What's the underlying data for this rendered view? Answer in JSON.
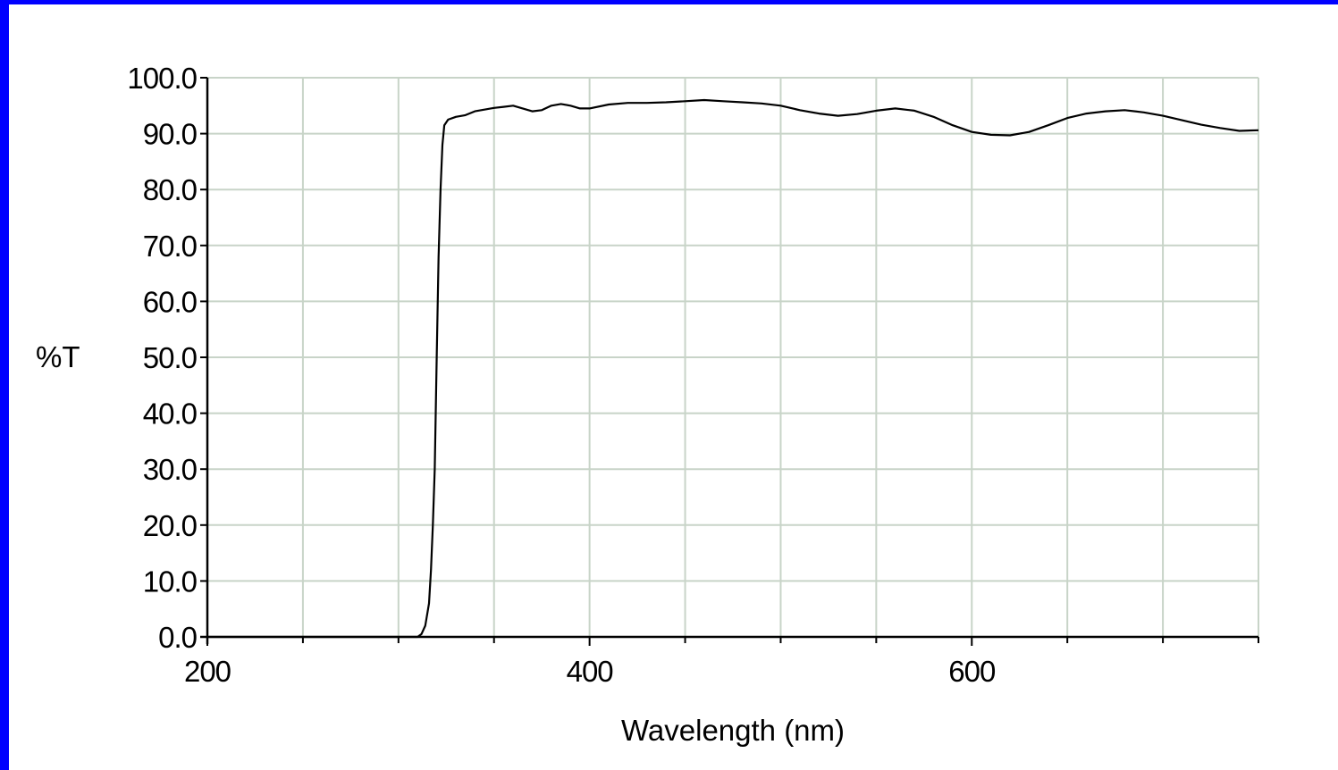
{
  "chart_data": {
    "type": "line",
    "title": "",
    "xlabel": "Wavelength (nm)",
    "ylabel": "%T",
    "xlim": [
      200,
      750
    ],
    "ylim": [
      0,
      100
    ],
    "x_tick_labels": [
      "200",
      "400",
      "600"
    ],
    "x_tick_values": [
      200,
      400,
      600
    ],
    "x_minor_ticks": [
      250,
      300,
      350,
      450,
      500,
      550,
      650,
      700,
      750
    ],
    "y_tick_labels": [
      "0.0",
      "10.0",
      "20.0",
      "30.0",
      "40.0",
      "50.0",
      "60.0",
      "70.0",
      "80.0",
      "90.0",
      "100.0"
    ],
    "y_tick_values": [
      0,
      10,
      20,
      30,
      40,
      50,
      60,
      70,
      80,
      90,
      100
    ],
    "grid": true,
    "legend": "none",
    "colors": {
      "line": "#000000",
      "grid": "#c8d4c8",
      "frame": "#0000ff"
    },
    "series": [
      {
        "name": "",
        "x": [
          200,
          250,
          300,
          310,
          312,
          314,
          316,
          317,
          318,
          319,
          320,
          321,
          322,
          323,
          324,
          326,
          330,
          335,
          340,
          345,
          350,
          355,
          360,
          365,
          370,
          375,
          380,
          385,
          390,
          395,
          400,
          410,
          420,
          430,
          440,
          450,
          460,
          470,
          480,
          490,
          500,
          510,
          520,
          530,
          540,
          550,
          560,
          570,
          580,
          590,
          600,
          610,
          620,
          630,
          640,
          650,
          660,
          670,
          680,
          690,
          700,
          710,
          720,
          730,
          740,
          750
        ],
        "y": [
          0,
          0,
          0,
          0,
          0.5,
          2,
          6,
          12,
          20,
          30,
          50,
          68,
          80,
          88,
          91.5,
          92.5,
          93,
          93.3,
          94,
          94.3,
          94.6,
          94.8,
          95,
          94.5,
          94,
          94.2,
          95,
          95.3,
          95,
          94.5,
          94.5,
          95.2,
          95.5,
          95.5,
          95.6,
          95.8,
          96,
          95.8,
          95.6,
          95.4,
          95,
          94.2,
          93.6,
          93.2,
          93.5,
          94.1,
          94.5,
          94.1,
          93,
          91.5,
          90.3,
          89.8,
          89.7,
          90.3,
          91.5,
          92.8,
          93.6,
          94,
          94.2,
          93.8,
          93.2,
          92.4,
          91.6,
          91,
          90.5,
          90.6
        ]
      }
    ]
  }
}
